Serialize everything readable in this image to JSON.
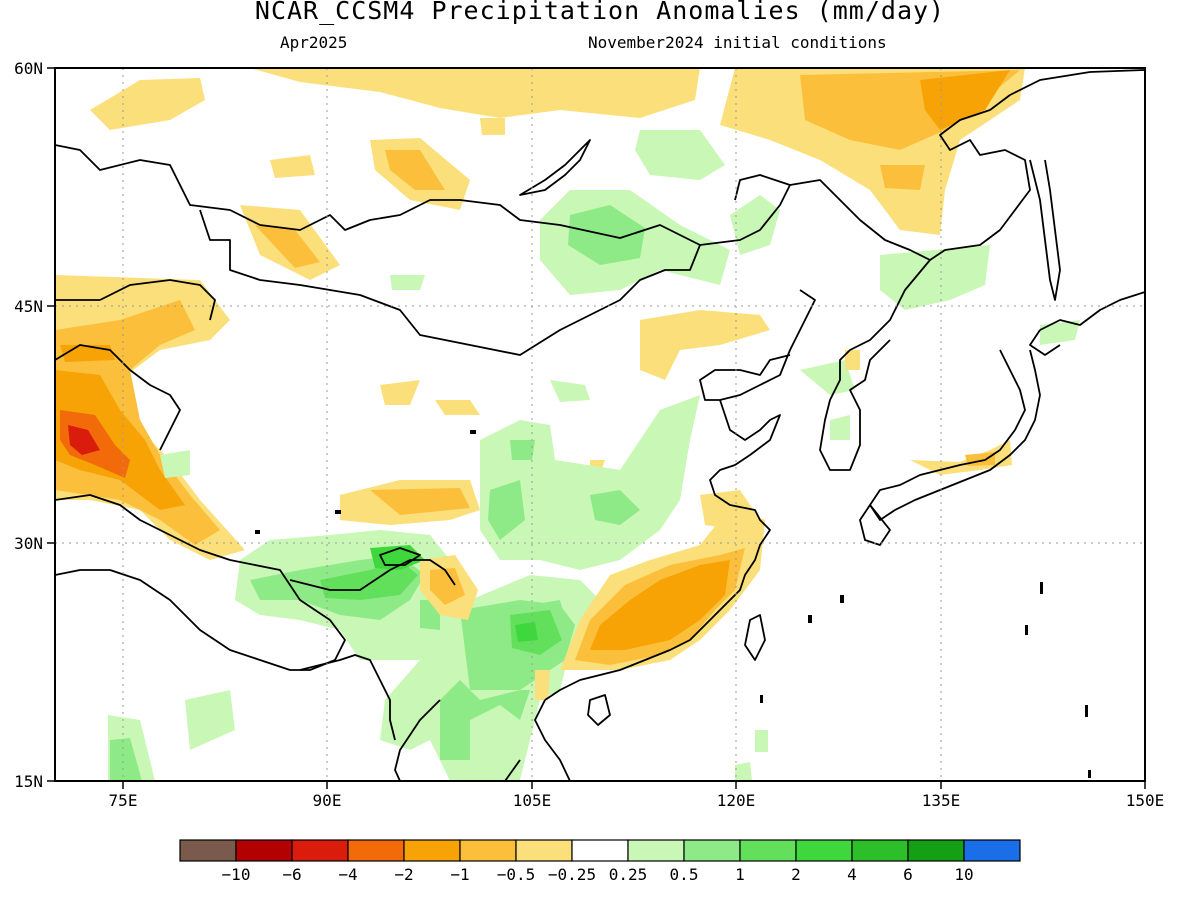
{
  "title": "NCAR_CCSM4 Precipitation Anomalies (mm/day)",
  "valid_month": "Apr2025",
  "initial_conditions": "November2024 initial conditions",
  "map": {
    "lon_ticks": [
      "75E",
      "90E",
      "105E",
      "120E",
      "135E",
      "150E"
    ],
    "lat_ticks": [
      "60N",
      "45N",
      "30N",
      "15N"
    ],
    "grid": "dotted",
    "lon_range": [
      70,
      150
    ],
    "lat_range": [
      15,
      60
    ],
    "lon_tick_values": [
      75,
      90,
      105,
      120,
      135,
      150
    ],
    "lat_tick_values": [
      60,
      45,
      30,
      15
    ]
  },
  "colorbar": {
    "labels": [
      "−10",
      "−6",
      "−4",
      "−2",
      "−1",
      "−0.5",
      "−0.25",
      "0.25",
      "0.5",
      "1",
      "2",
      "4",
      "6",
      "10"
    ],
    "colors": [
      "#7a5a4d",
      "#b30000",
      "#d91c0c",
      "#f26a0a",
      "#f7a305",
      "#fbbf3b",
      "#fbdf7a",
      "#ffffff",
      "#c9f7b6",
      "#8eea86",
      "#62e05c",
      "#3fd83c",
      "#2cbf2a",
      "#14a014",
      "#1a6ee8"
    ]
  },
  "colors": {
    "brown": "#7a5a4d",
    "dark_red": "#b30000",
    "red": "#d91c0c",
    "orange": "#f26a0a",
    "dark_orange": "#f7a305",
    "light_orange": "#fbbf3b",
    "yellow": "#fbdf7a",
    "light_green": "#c9f7b6",
    "green2": "#8eea86",
    "green3": "#62e05c",
    "green4": "#3fd83c",
    "blue": "#1a6ee8"
  }
}
